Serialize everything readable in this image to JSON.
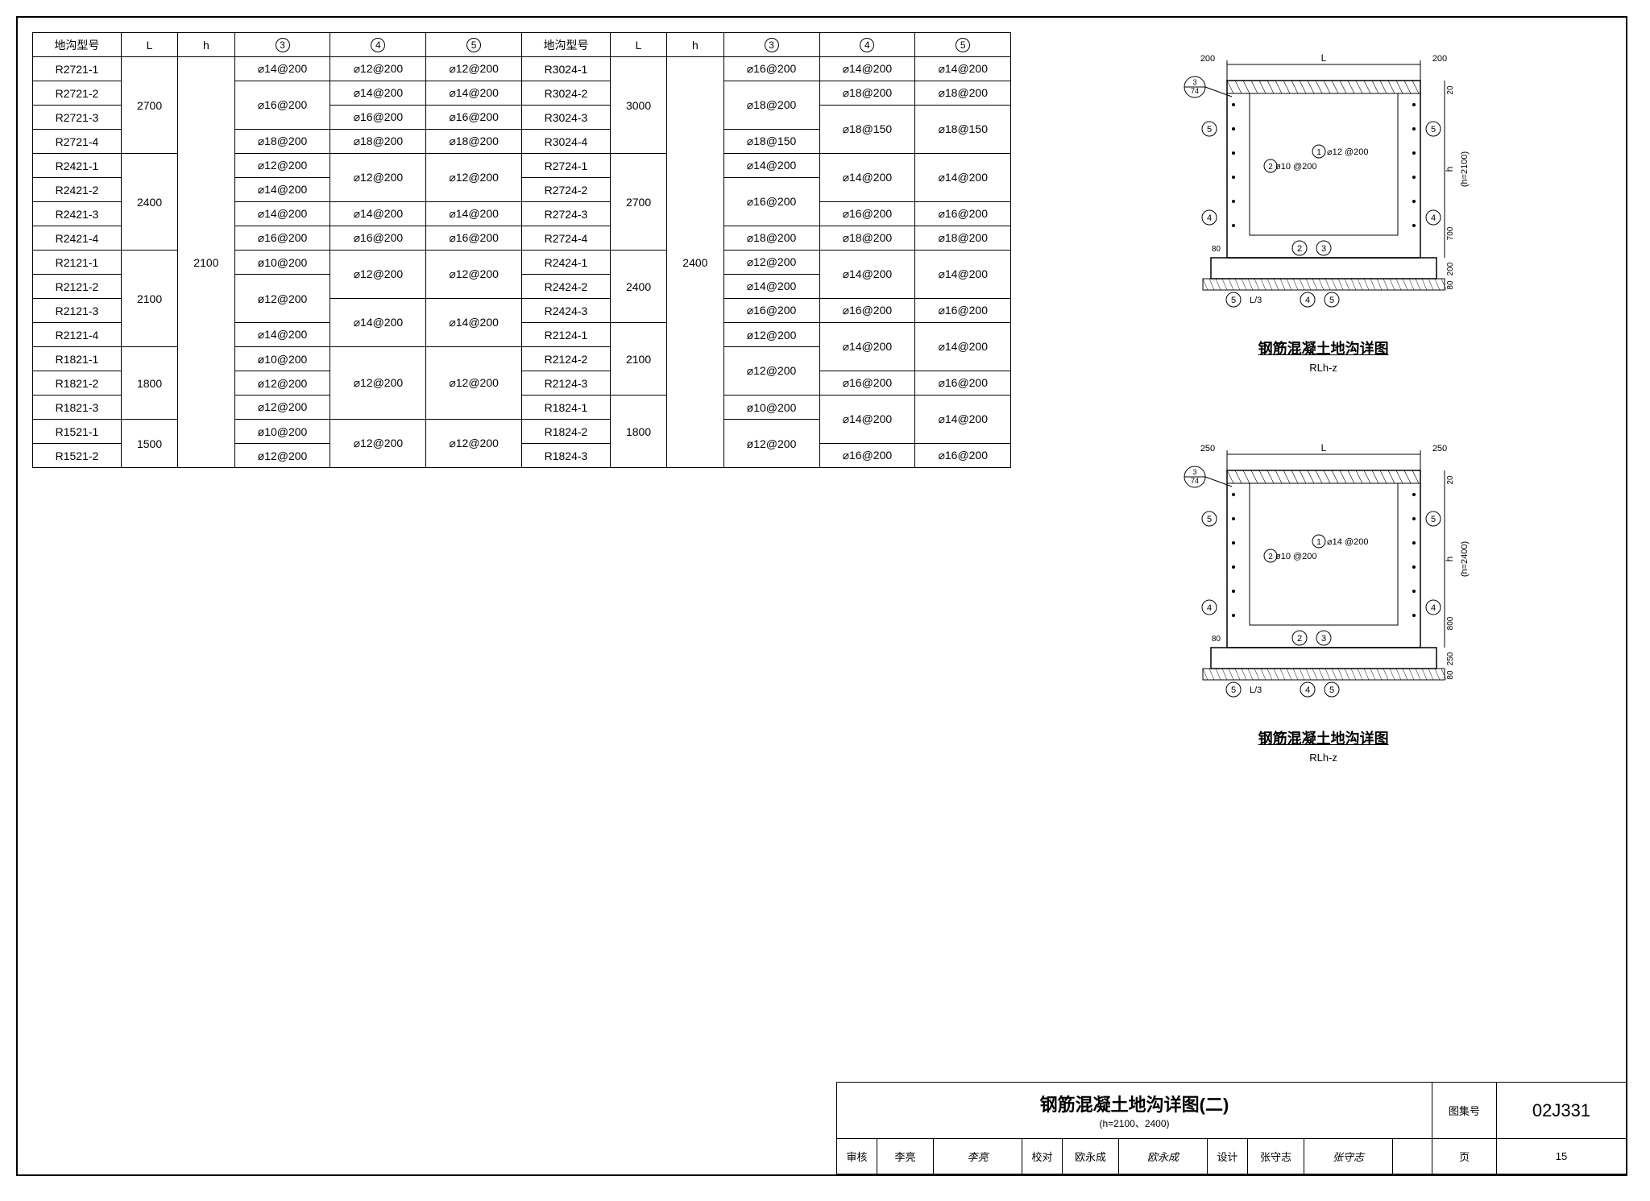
{
  "table": {
    "headers_left": [
      "地沟型号",
      "L",
      "h",
      "③",
      "④",
      "⑤"
    ],
    "headers_right": [
      "地沟型号",
      "L",
      "h",
      "③",
      "④",
      "⑤"
    ],
    "groups_left": [
      {
        "L": "2700",
        "h_span_start": true,
        "rows": [
          {
            "id": "R2721-1",
            "c3": "⌀14@200",
            "c4": "⌀12@200",
            "c5": "⌀12@200"
          },
          {
            "id": "R2721-2",
            "c3": "⌀16@200",
            "c3_rs": 2,
            "c4": "⌀14@200",
            "c5": "⌀14@200"
          },
          {
            "id": "R2721-3",
            "c4": "⌀16@200",
            "c5": "⌀16@200"
          },
          {
            "id": "R2721-4",
            "c3": "⌀18@200",
            "c4": "⌀18@200",
            "c5": "⌀18@200"
          }
        ]
      },
      {
        "L": "2400",
        "rows": [
          {
            "id": "R2421-1",
            "c3": "⌀12@200",
            "c4": "⌀12@200",
            "c4_rs": 2,
            "c5": "⌀12@200",
            "c5_rs": 2
          },
          {
            "id": "R2421-2",
            "c3": "⌀14@200"
          },
          {
            "id": "R2421-3",
            "c3": "⌀14@200",
            "c4": "⌀14@200",
            "c5": "⌀14@200"
          },
          {
            "id": "R2421-4",
            "c3": "⌀16@200",
            "c4": "⌀16@200",
            "c5": "⌀16@200"
          }
        ]
      },
      {
        "L": "2100",
        "h": "2100",
        "h_rs": 18,
        "rows": [
          {
            "id": "R2121-1",
            "c3": "ø10@200",
            "c4": "⌀12@200",
            "c4_rs": 2,
            "c5": "⌀12@200",
            "c5_rs": 2
          },
          {
            "id": "R2121-2",
            "c3": "ø12@200",
            "c3_rs": 2
          },
          {
            "id": "R2121-3",
            "c4": "⌀14@200",
            "c4_rs": 2,
            "c5": "⌀14@200",
            "c5_rs": 2
          },
          {
            "id": "R2121-4",
            "c3": "⌀14@200"
          }
        ]
      },
      {
        "L": "1800",
        "rows": [
          {
            "id": "R1821-1",
            "c3": "ø10@200",
            "c4": "⌀12@200",
            "c4_rs": 3,
            "c5": "⌀12@200",
            "c5_rs": 3
          },
          {
            "id": "R1821-2",
            "c3": "ø12@200"
          },
          {
            "id": "R1821-3",
            "c3": "⌀12@200"
          }
        ]
      },
      {
        "L": "1500",
        "rows": [
          {
            "id": "R1521-1",
            "c3": "ø10@200",
            "c4": "⌀12@200",
            "c4_rs": 2,
            "c5": "⌀12@200",
            "c5_rs": 2
          },
          {
            "id": "R1521-2",
            "c3": "ø12@200"
          }
        ]
      }
    ],
    "groups_right": [
      {
        "L": "3000",
        "rows": [
          {
            "id": "R3024-1",
            "c3": "⌀16@200",
            "c4": "⌀14@200",
            "c5": "⌀14@200"
          },
          {
            "id": "R3024-2",
            "c3": "⌀18@200",
            "c3_rs": 2,
            "c4": "⌀18@200",
            "c5": "⌀18@200"
          },
          {
            "id": "R3024-3",
            "c4": "⌀18@150",
            "c4_rs": 2,
            "c5": "⌀18@150",
            "c5_rs": 2
          },
          {
            "id": "R3024-4",
            "c3": "⌀18@150"
          }
        ]
      },
      {
        "L": "2700",
        "h": "2400",
        "h_rs": 18,
        "rows": [
          {
            "id": "R2724-1",
            "c3": "⌀14@200",
            "c4": "⌀14@200",
            "c4_rs": 2,
            "c5": "⌀14@200",
            "c5_rs": 2
          },
          {
            "id": "R2724-2",
            "c3": "⌀16@200",
            "c3_rs": 2
          },
          {
            "id": "R2724-3",
            "c4": "⌀16@200",
            "c5": "⌀16@200"
          },
          {
            "id": "R2724-4",
            "c3": "⌀18@200",
            "c4": "⌀18@200",
            "c5": "⌀18@200"
          }
        ]
      },
      {
        "L": "2400",
        "rows": [
          {
            "id": "R2424-1",
            "c3": "⌀12@200",
            "c4": "⌀14@200",
            "c4_rs": 2,
            "c5": "⌀14@200",
            "c5_rs": 2
          },
          {
            "id": "R2424-2",
            "c3": "⌀14@200"
          },
          {
            "id": "R2424-3",
            "c3": "⌀16@200",
            "c4": "⌀16@200",
            "c5": "⌀16@200"
          }
        ]
      },
      {
        "L": "2100",
        "rows": [
          {
            "id": "R2124-1",
            "c3": "ø12@200",
            "c4": "⌀14@200",
            "c4_rs": 2,
            "c5": "⌀14@200",
            "c5_rs": 2
          },
          {
            "id": "R2124-2",
            "c3": "⌀12@200",
            "c3_rs": 2
          },
          {
            "id": "R2124-3",
            "c4": "⌀16@200",
            "c5": "⌀16@200"
          }
        ]
      },
      {
        "L": "1800",
        "rows": [
          {
            "id": "R1824-1",
            "c3": "ø10@200",
            "c4": "⌀14@200",
            "c4_rs": 2,
            "c5": "⌀14@200",
            "c5_rs": 2
          },
          {
            "id": "R1824-2",
            "c3": "ø12@200",
            "c3_rs": 2
          },
          {
            "id": "R1824-3",
            "c4": "⌀16@200",
            "c5": "⌀16@200"
          }
        ]
      }
    ]
  },
  "diagrams": [
    {
      "title": "钢筋混凝土地沟详图",
      "subtitle": "RLh-z",
      "top_dim_left": "200",
      "top_dim_mid": "L",
      "top_dim_right": "200",
      "corner_ref": "3/74",
      "rebar1": "ø10 @200",
      "rebar1_ref": "②",
      "rebar2": "⌀12 @200",
      "rebar2_ref": "①",
      "right_h": "(h=2100)",
      "right_dim_top": "20",
      "right_dim_mid": "h",
      "right_dim_bot": "700",
      "base_thick": "200",
      "base_pad": "80",
      "left_pad": "80",
      "bot_label": "L/3",
      "callouts": [
        "⑤",
        "④",
        "②",
        "③",
        "⑤",
        "④",
        "⑤"
      ]
    },
    {
      "title": "钢筋混凝土地沟详图",
      "subtitle": "RLh-z",
      "top_dim_left": "250",
      "top_dim_mid": "L",
      "top_dim_right": "250",
      "corner_ref": "3/74",
      "rebar1": "ø10 @200",
      "rebar1_ref": "②",
      "rebar2": "⌀14 @200",
      "rebar2_ref": "①",
      "right_h": "(h=2400)",
      "right_dim_top": "20",
      "right_dim_mid": "h",
      "right_dim_bot": "800",
      "base_thick": "250",
      "base_pad": "80",
      "left_pad": "80",
      "bot_label": "L/3",
      "callouts": [
        "⑤",
        "④",
        "②",
        "③",
        "⑤",
        "④",
        "⑤"
      ]
    }
  ],
  "titleblock": {
    "main_title": "钢筋混凝土地沟详图(二)",
    "sub_title": "(h=2100、2400)",
    "set_label": "图集号",
    "set_value": "02J331",
    "page_label": "页",
    "page_value": "15",
    "roles": [
      {
        "label": "审核",
        "name": "李亮",
        "sig": "李亮"
      },
      {
        "label": "校对",
        "name": "欧永成",
        "sig": "欧永成"
      },
      {
        "label": "设计",
        "name": "张守志",
        "sig": "张守志"
      }
    ]
  },
  "style": {
    "border_color": "#000000",
    "bg": "#ffffff",
    "hatch_color": "#000000",
    "font_size_table": 14,
    "font_size_title": 22
  }
}
